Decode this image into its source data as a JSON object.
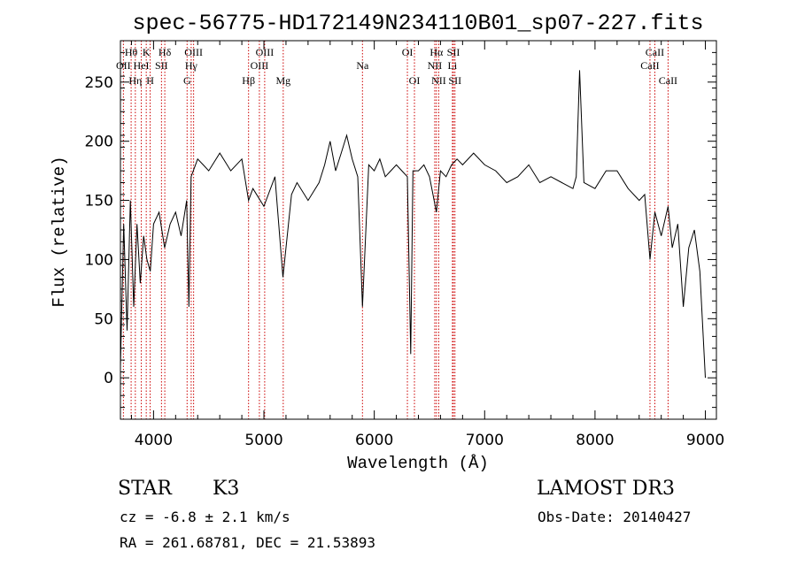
{
  "chart_data": {
    "type": "line",
    "title": "spec-56775-HD172149N234110B01_sp07-227.fits",
    "xlabel": "Wavelength (Å)",
    "ylabel": "Flux (relative)",
    "xlim": [
      3700,
      9100
    ],
    "ylim": [
      -35,
      285
    ],
    "x_ticks": [
      4000,
      5000,
      6000,
      7000,
      8000,
      9000
    ],
    "y_ticks": [
      0,
      50,
      100,
      150,
      200,
      250
    ],
    "series": [
      {
        "name": "spectrum",
        "x": [
          3700,
          3730,
          3760,
          3790,
          3820,
          3850,
          3880,
          3910,
          3940,
          3970,
          4000,
          4050,
          4100,
          4150,
          4200,
          4250,
          4300,
          4320,
          4340,
          4400,
          4450,
          4500,
          4600,
          4700,
          4800,
          4861,
          4900,
          5000,
          5100,
          5172,
          5250,
          5300,
          5400,
          5500,
          5550,
          5600,
          5650,
          5700,
          5750,
          5800,
          5850,
          5893,
          5950,
          6000,
          6050,
          6100,
          6150,
          6200,
          6250,
          6300,
          6330,
          6350,
          6400,
          6450,
          6500,
          6563,
          6600,
          6650,
          6700,
          6750,
          6800,
          6900,
          7000,
          7100,
          7200,
          7300,
          7400,
          7500,
          7600,
          7700,
          7800,
          7830,
          7860,
          7900,
          8000,
          8100,
          8200,
          8300,
          8400,
          8450,
          8498,
          8542,
          8600,
          8662,
          8700,
          8750,
          8800,
          8850,
          8900,
          8950,
          9000
        ],
        "y": [
          10,
          130,
          40,
          150,
          60,
          130,
          80,
          120,
          100,
          90,
          130,
          140,
          110,
          130,
          140,
          120,
          150,
          60,
          170,
          185,
          180,
          175,
          190,
          175,
          185,
          150,
          160,
          145,
          170,
          85,
          155,
          165,
          150,
          165,
          180,
          200,
          175,
          190,
          205,
          185,
          170,
          60,
          180,
          175,
          185,
          170,
          175,
          180,
          175,
          170,
          20,
          175,
          175,
          180,
          170,
          140,
          175,
          170,
          180,
          185,
          180,
          190,
          180,
          175,
          165,
          170,
          180,
          165,
          170,
          165,
          160,
          170,
          260,
          165,
          160,
          175,
          175,
          160,
          150,
          155,
          100,
          140,
          120,
          145,
          110,
          130,
          60,
          110,
          125,
          90,
          0
        ]
      }
    ],
    "spectral_lines": [
      {
        "label": "Hθ",
        "x": 3797,
        "row": 1
      },
      {
        "label": "OII",
        "x": 3727,
        "row": 2
      },
      {
        "label": "Hη",
        "x": 3835,
        "row": 3
      },
      {
        "label": "K",
        "x": 3934,
        "row": 1
      },
      {
        "label": "HeI",
        "x": 3889,
        "row": 2
      },
      {
        "label": "H",
        "x": 3969,
        "row": 3
      },
      {
        "label": "Hδ",
        "x": 4102,
        "row": 1
      },
      {
        "label": "SII",
        "x": 4072,
        "row": 2
      },
      {
        "label": "OIII",
        "x": 4363,
        "row": 1
      },
      {
        "label": "Hγ",
        "x": 4341,
        "row": 2
      },
      {
        "label": "G",
        "x": 4304,
        "row": 3
      },
      {
        "label": "Hβ",
        "x": 4861,
        "row": 3
      },
      {
        "label": "OIII",
        "x": 5007,
        "row": 1
      },
      {
        "label": "OIII",
        "x": 4959,
        "row": 2
      },
      {
        "label": "Mg",
        "x": 5175,
        "row": 3
      },
      {
        "label": "Na",
        "x": 5893,
        "row": 2
      },
      {
        "label": "OI",
        "x": 6300,
        "row": 1
      },
      {
        "label": "OI",
        "x": 6364,
        "row": 3
      },
      {
        "label": "Hα",
        "x": 6563,
        "row": 1
      },
      {
        "label": "NII",
        "x": 6548,
        "row": 2
      },
      {
        "label": "NII",
        "x": 6584,
        "row": 3
      },
      {
        "label": "SII",
        "x": 6717,
        "row": 1
      },
      {
        "label": "Li",
        "x": 6708,
        "row": 2
      },
      {
        "label": "SII",
        "x": 6731,
        "row": 3
      },
      {
        "label": "CaII",
        "x": 8542,
        "row": 1
      },
      {
        "label": "CaII",
        "x": 8498,
        "row": 2
      },
      {
        "label": "CaII",
        "x": 8662,
        "row": 3
      }
    ],
    "line_color": "#000000",
    "marker_color": "#cc0000"
  },
  "info": {
    "object_class": "STAR",
    "subclass": "K3",
    "survey": "LAMOST DR3",
    "cz": "cz = -6.8 ± 2.1 km/s",
    "obs_date": "Obs-Date: 20140427",
    "coords": "RA = 261.68781, DEC =  21.53893"
  }
}
